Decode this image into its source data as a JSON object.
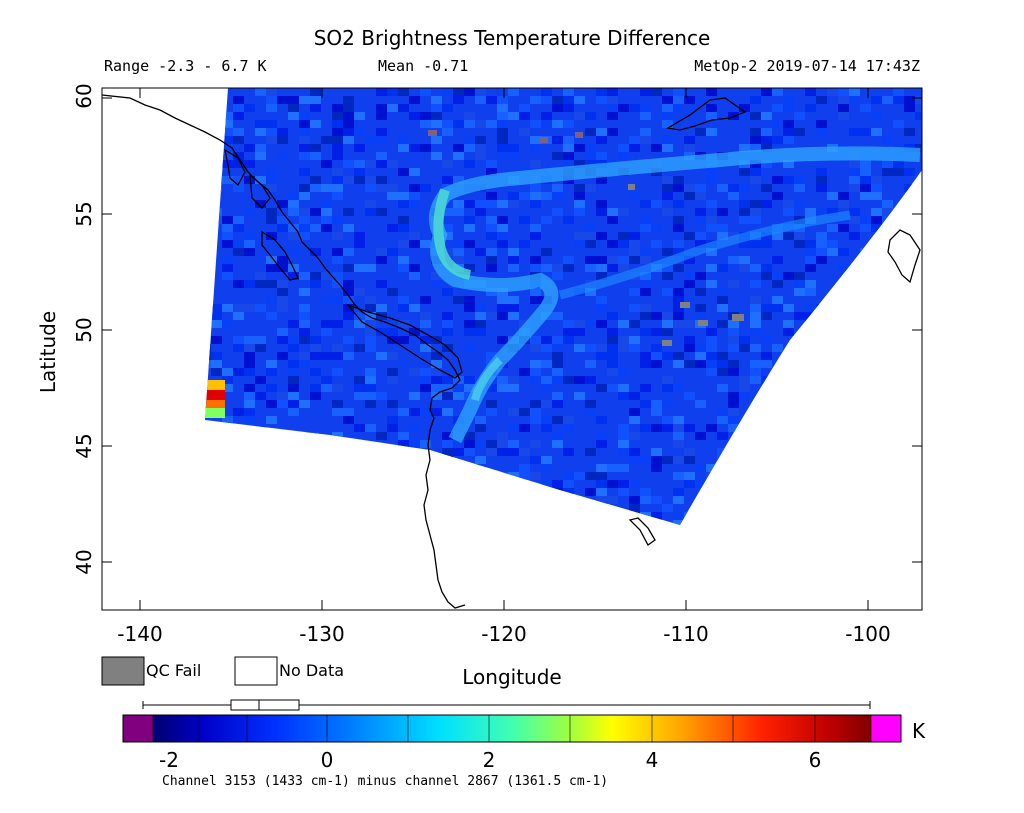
{
  "header": {
    "title": "SO2 Brightness Temperature Difference",
    "range": "Range -2.3 - 6.7 K",
    "mean": "Mean -0.71",
    "source": "MetOp-2 2019-07-14 17:43Z"
  },
  "axes": {
    "xlabel": "Longitude",
    "ylabel": "Latitude",
    "x_ticks": [
      "-140",
      "-130",
      "-120",
      "-110",
      "-100"
    ],
    "y_ticks": [
      "40",
      "45",
      "50",
      "55",
      "60"
    ]
  },
  "legend": {
    "qc_fail_label": "QC Fail",
    "no_data_label": "No Data",
    "qc_fail_color": "#808080",
    "no_data_color": "#ffffff"
  },
  "colorbar": {
    "unit": "K",
    "ticks": [
      "-2",
      "0",
      "2",
      "4",
      "6"
    ],
    "caption": "Channel 3153 (1433 cm-1) minus channel 2867 (1361.5 cm-1)",
    "under_color": "#800080",
    "over_color": "#ff00ff",
    "colors": [
      "#000070",
      "#0000c8",
      "#0010ff",
      "#0050ff",
      "#0090ff",
      "#00d0ff",
      "#20ffd0",
      "#70ff80",
      "#b0ff30",
      "#ffff00",
      "#ffc000",
      "#ff8000",
      "#ff3000",
      "#e00000",
      "#900000"
    ]
  },
  "map": {
    "lon_range": [
      -142,
      -97
    ],
    "lat_range": [
      38,
      60
    ]
  }
}
